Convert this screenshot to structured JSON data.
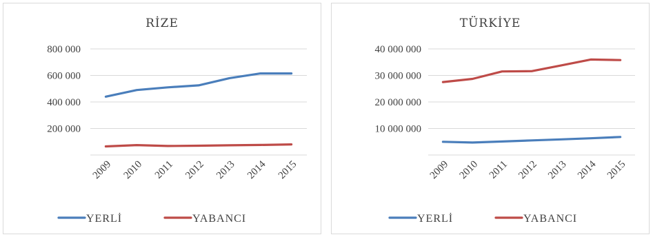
{
  "chart_data": [
    {
      "type": "line",
      "title": "RİZE",
      "xlabel": "",
      "ylabel": "",
      "categories": [
        "2009",
        "2010",
        "2011",
        "2012",
        "2013",
        "2014",
        "2015"
      ],
      "y_ticks": [
        "200 000",
        "400 000",
        "600 000",
        "800 000"
      ],
      "ylim": [
        0,
        800000
      ],
      "grid": true,
      "legend": "bottom",
      "series": [
        {
          "name": "YERLİ",
          "color": "#4a7ebb",
          "values": [
            440000,
            490000,
            510000,
            525000,
            580000,
            615000,
            615000
          ]
        },
        {
          "name": "YABANCI",
          "color": "#be4b48",
          "values": [
            65000,
            75000,
            68000,
            70000,
            73000,
            76000,
            80000
          ]
        }
      ]
    },
    {
      "type": "line",
      "title": "TÜRKİYE",
      "xlabel": "",
      "ylabel": "",
      "categories": [
        "2009",
        "2010",
        "2011",
        "2012",
        "2013",
        "2014",
        "2015"
      ],
      "y_ticks": [
        "10 000 000",
        "20 000 000",
        "30 000 000",
        "40 000 000"
      ],
      "ylim": [
        0,
        40000000
      ],
      "grid": true,
      "legend": "bottom",
      "series": [
        {
          "name": "YERLİ",
          "color": "#4a7ebb",
          "values": [
            5000000,
            4700000,
            5100000,
            5500000,
            5900000,
            6300000,
            6800000
          ]
        },
        {
          "name": "YABANCI",
          "color": "#be4b48",
          "values": [
            27500000,
            28700000,
            31500000,
            31600000,
            33800000,
            36000000,
            35800000
          ]
        }
      ]
    }
  ]
}
